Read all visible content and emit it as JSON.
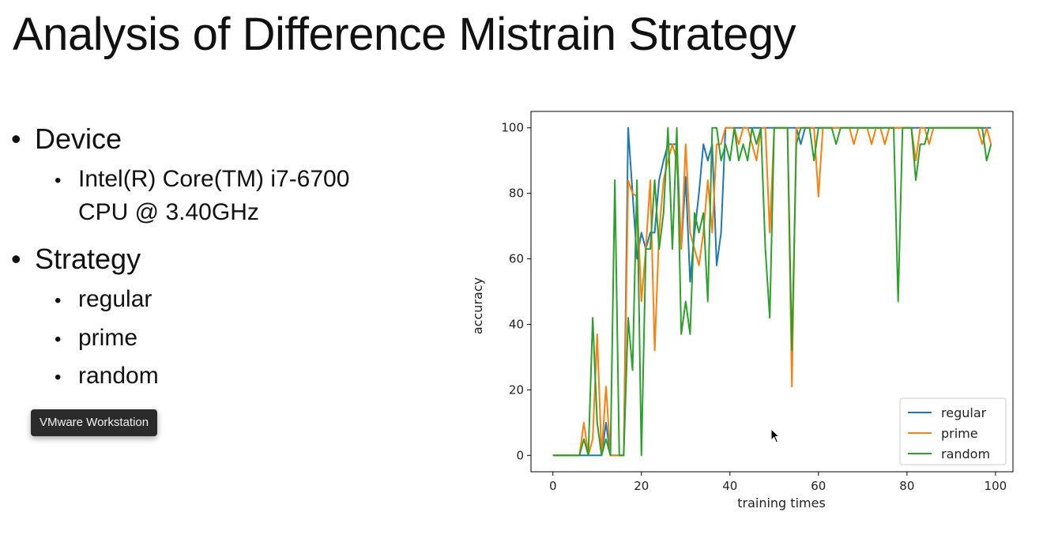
{
  "slide": {
    "title": "Analysis of Difference Mistrain Strategy",
    "bullets": {
      "device_label": "Device",
      "device_value_line1": "Intel(R) Core(TM) i7-6700",
      "device_value_line2": "CPU @ 3.40GHz",
      "strategy_label": "Strategy",
      "strategies": [
        "regular",
        "prime",
        "random"
      ]
    }
  },
  "tooltip": {
    "text": "VMware Workstation"
  },
  "chart_data": {
    "type": "line",
    "title": "",
    "xlabel": "training times",
    "ylabel": "accuracy",
    "xlim": [
      -4.95,
      103.95
    ],
    "ylim": [
      -5,
      105
    ],
    "xticks": [
      0,
      20,
      40,
      60,
      80,
      100
    ],
    "yticks": [
      0,
      20,
      40,
      60,
      80,
      100
    ],
    "grid": false,
    "legend_position": "lower-right",
    "x": [
      0,
      1,
      2,
      3,
      4,
      5,
      6,
      7,
      8,
      9,
      10,
      11,
      12,
      13,
      14,
      15,
      16,
      17,
      18,
      19,
      20,
      21,
      22,
      23,
      24,
      25,
      26,
      27,
      28,
      29,
      30,
      31,
      32,
      33,
      34,
      35,
      36,
      37,
      38,
      39,
      40,
      41,
      42,
      43,
      44,
      45,
      46,
      47,
      48,
      49,
      50,
      51,
      52,
      53,
      54,
      55,
      56,
      57,
      58,
      59,
      60,
      61,
      62,
      63,
      64,
      65,
      66,
      67,
      68,
      69,
      70,
      71,
      72,
      73,
      74,
      75,
      76,
      77,
      78,
      79,
      80,
      81,
      82,
      83,
      84,
      85,
      86,
      87,
      88,
      89,
      90,
      91,
      92,
      93,
      94,
      95,
      96,
      97,
      98,
      99
    ],
    "series": [
      {
        "name": "regular",
        "color": "#1f77b4",
        "values": [
          0,
          0,
          0,
          0,
          0,
          0,
          0,
          0,
          0,
          0,
          0,
          0,
          10,
          0,
          0,
          0,
          0,
          100,
          80,
          60,
          68,
          63,
          68,
          68,
          84,
          90,
          95,
          95,
          95,
          63,
          85,
          53,
          68,
          80,
          95,
          90,
          95,
          58,
          68,
          100,
          100,
          100,
          100,
          100,
          100,
          100,
          100,
          100,
          100,
          100,
          100,
          100,
          100,
          100,
          100,
          100,
          95,
          100,
          100,
          100,
          100,
          100,
          100,
          100,
          100,
          100,
          100,
          100,
          100,
          100,
          100,
          100,
          100,
          100,
          100,
          100,
          100,
          100,
          100,
          100,
          100,
          100,
          100,
          100,
          100,
          100,
          100,
          100,
          100,
          100,
          100,
          100,
          100,
          100,
          100,
          100,
          100,
          100,
          100,
          100
        ]
      },
      {
        "name": "prime",
        "color": "#ff7f0e",
        "values": [
          0,
          0,
          0,
          0,
          0,
          0,
          0,
          10,
          0,
          5,
          37,
          0,
          21,
          0,
          0,
          0,
          0,
          84,
          80,
          79,
          47,
          63,
          84,
          32,
          68,
          84,
          90,
          95,
          90,
          63,
          95,
          68,
          63,
          58,
          68,
          84,
          68,
          95,
          95,
          100,
          100,
          100,
          95,
          100,
          100,
          95,
          90,
          100,
          100,
          68,
          100,
          100,
          100,
          100,
          21,
          100,
          100,
          100,
          100,
          100,
          79,
          100,
          100,
          100,
          100,
          100,
          100,
          100,
          95,
          100,
          100,
          100,
          95,
          100,
          100,
          95,
          100,
          100,
          100,
          100,
          100,
          100,
          90,
          100,
          100,
          95,
          100,
          100,
          100,
          100,
          100,
          100,
          100,
          100,
          100,
          100,
          100,
          95,
          100,
          95
        ]
      },
      {
        "name": "random",
        "color": "#2ca02c",
        "values": [
          0,
          0,
          0,
          0,
          0,
          0,
          0,
          5,
          0,
          42,
          10,
          0,
          5,
          0,
          84,
          0,
          0,
          42,
          26,
          84,
          0,
          63,
          63,
          84,
          63,
          74,
          100,
          63,
          100,
          37,
          47,
          37,
          74,
          68,
          74,
          47,
          100,
          100,
          90,
          95,
          90,
          100,
          90,
          95,
          90,
          100,
          95,
          100,
          63,
          42,
          100,
          100,
          100,
          100,
          32,
          95,
          100,
          100,
          100,
          90,
          100,
          100,
          100,
          100,
          95,
          100,
          100,
          100,
          100,
          100,
          100,
          100,
          100,
          100,
          100,
          100,
          100,
          100,
          47,
          100,
          100,
          100,
          84,
          95,
          95,
          100,
          100,
          100,
          100,
          100,
          100,
          100,
          100,
          100,
          100,
          100,
          100,
          100,
          90,
          95
        ]
      }
    ]
  }
}
